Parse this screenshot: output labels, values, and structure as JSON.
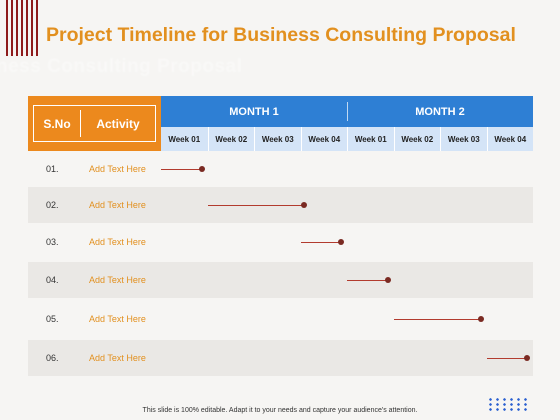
{
  "slide": {
    "title": "Project Timeline for Business Consulting Proposal",
    "ghost_text": "ness Consulting Proposal",
    "footer": "This slide is 100% editable. Adapt it to your needs and capture your audience's attention."
  },
  "table": {
    "sno_header": "S.No",
    "activity_header": "Activity",
    "months": [
      "MONTH 1",
      "MONTH 2"
    ],
    "weeks": [
      "Week 01",
      "Week 02",
      "Week 03",
      "Week 04",
      "Week 01",
      "Week 02",
      "Week 03",
      "Week 04"
    ],
    "rows": [
      {
        "sno": "01.",
        "activity": "Add Text Here",
        "start_week": 0.0,
        "end_week": 1.0
      },
      {
        "sno": "02.",
        "activity": "Add Text Here",
        "start_week": 1.0,
        "end_week": 3.2
      },
      {
        "sno": "03.",
        "activity": "Add Text Here",
        "start_week": 3.0,
        "end_week": 4.0
      },
      {
        "sno": "04.",
        "activity": "Add Text Here",
        "start_week": 4.0,
        "end_week": 5.0
      },
      {
        "sno": "05.",
        "activity": "Add Text Here",
        "start_week": 5.0,
        "end_week": 7.0
      },
      {
        "sno": "06.",
        "activity": "Add Text Here",
        "start_week": 7.0,
        "end_week": 8.0
      }
    ]
  },
  "colors": {
    "accent_orange": "#ec891d",
    "month_blue": "#2e7fd4",
    "week_light_blue": "#d4e4f7",
    "bar_red": "#b23b2e",
    "title_color": "#e2901f"
  }
}
